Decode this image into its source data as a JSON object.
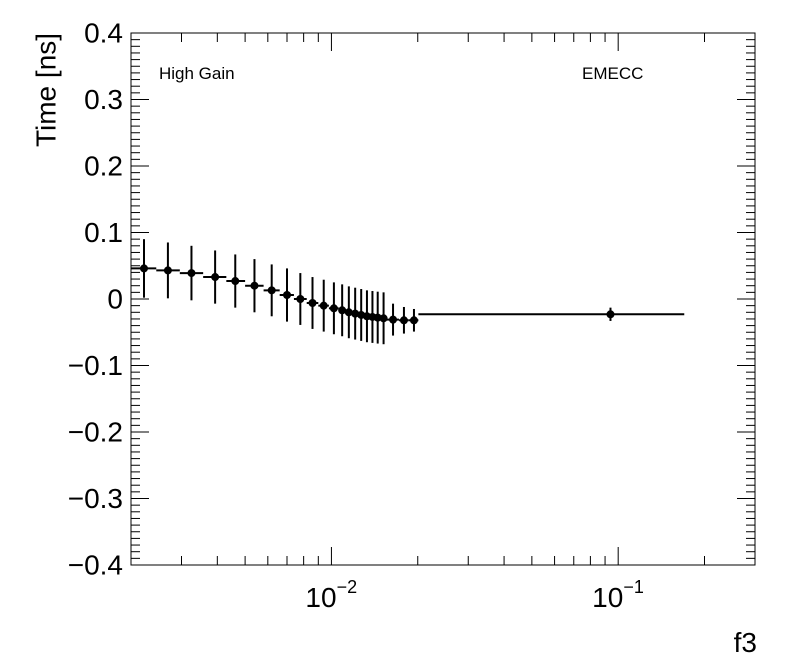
{
  "chart_data": {
    "type": "scatter",
    "xscale": "log",
    "xlim": [
      0.002,
      0.3
    ],
    "ylim": [
      -0.4,
      0.4
    ],
    "xlabel": "f3",
    "ylabel": "Time [ns]",
    "annotations": {
      "left": "High Gain",
      "right": "EMECC"
    },
    "x_ticks": [
      {
        "value": 0.01,
        "base": "10",
        "exp": "−2"
      },
      {
        "value": 0.1,
        "base": "10",
        "exp": "−1"
      }
    ],
    "y_ticks": [
      {
        "value": 0.4,
        "label": "0.4"
      },
      {
        "value": 0.3,
        "label": "0.3"
      },
      {
        "value": 0.2,
        "label": "0.2"
      },
      {
        "value": 0.1,
        "label": "0.1"
      },
      {
        "value": 0.0,
        "label": "0"
      },
      {
        "value": -0.1,
        "label": "−0.1"
      },
      {
        "value": -0.2,
        "label": "−0.2"
      },
      {
        "value": -0.3,
        "label": "−0.3"
      },
      {
        "value": -0.4,
        "label": "−0.4"
      }
    ],
    "series": [
      {
        "points": [
          {
            "x": 0.00222,
            "xlo": 0.002,
            "xhi": 0.00245,
            "y": 0.046,
            "err": 0.044
          },
          {
            "x": 0.00269,
            "xlo": 0.00245,
            "xhi": 0.00296,
            "y": 0.043,
            "err": 0.042
          },
          {
            "x": 0.00325,
            "xlo": 0.00296,
            "xhi": 0.00357,
            "y": 0.039,
            "err": 0.041
          },
          {
            "x": 0.00393,
            "xlo": 0.00357,
            "xhi": 0.0043,
            "y": 0.033,
            "err": 0.04
          },
          {
            "x": 0.00462,
            "xlo": 0.0043,
            "xhi": 0.005,
            "y": 0.027,
            "err": 0.04
          },
          {
            "x": 0.00539,
            "xlo": 0.005,
            "xhi": 0.0058,
            "y": 0.02,
            "err": 0.04
          },
          {
            "x": 0.00619,
            "xlo": 0.0058,
            "xhi": 0.0066,
            "y": 0.013,
            "err": 0.039
          },
          {
            "x": 0.007,
            "xlo": 0.0066,
            "xhi": 0.0074,
            "y": 0.006,
            "err": 0.04
          },
          {
            "x": 0.00779,
            "xlo": 0.0074,
            "xhi": 0.0082,
            "y": 0.0,
            "err": 0.039
          },
          {
            "x": 0.00859,
            "xlo": 0.0082,
            "xhi": 0.009,
            "y": -0.006,
            "err": 0.039
          },
          {
            "x": 0.0094,
            "xlo": 0.009,
            "xhi": 0.0098,
            "y": -0.01,
            "err": 0.039
          },
          {
            "x": 0.0102,
            "xlo": 0.0098,
            "xhi": 0.0106,
            "y": -0.014,
            "err": 0.039
          },
          {
            "x": 0.0109,
            "xlo": 0.0106,
            "xhi": 0.0112,
            "y": -0.017,
            "err": 0.039
          },
          {
            "x": 0.0115,
            "xlo": 0.0112,
            "xhi": 0.0118,
            "y": -0.02,
            "err": 0.039
          },
          {
            "x": 0.0121,
            "xlo": 0.0118,
            "xhi": 0.0124,
            "y": -0.022,
            "err": 0.039
          },
          {
            "x": 0.0127,
            "xlo": 0.0124,
            "xhi": 0.013,
            "y": -0.024,
            "err": 0.039
          },
          {
            "x": 0.0133,
            "xlo": 0.013,
            "xhi": 0.0136,
            "y": -0.026,
            "err": 0.039
          },
          {
            "x": 0.0139,
            "xlo": 0.0136,
            "xhi": 0.0142,
            "y": -0.027,
            "err": 0.039
          },
          {
            "x": 0.0145,
            "xlo": 0.0142,
            "xhi": 0.0148,
            "y": -0.028,
            "err": 0.039
          },
          {
            "x": 0.0152,
            "xlo": 0.0148,
            "xhi": 0.0156,
            "y": -0.029,
            "err": 0.039
          },
          {
            "x": 0.0164,
            "xlo": 0.0156,
            "xhi": 0.0172,
            "y": -0.031,
            "err": 0.024
          },
          {
            "x": 0.0179,
            "xlo": 0.0172,
            "xhi": 0.0186,
            "y": -0.032,
            "err": 0.02
          },
          {
            "x": 0.0194,
            "xlo": 0.0186,
            "xhi": 0.0201,
            "y": -0.032,
            "err": 0.017
          },
          {
            "x": 0.094,
            "xlo": 0.0201,
            "xhi": 0.17,
            "y": -0.023,
            "err": 0.01
          }
        ]
      }
    ]
  }
}
